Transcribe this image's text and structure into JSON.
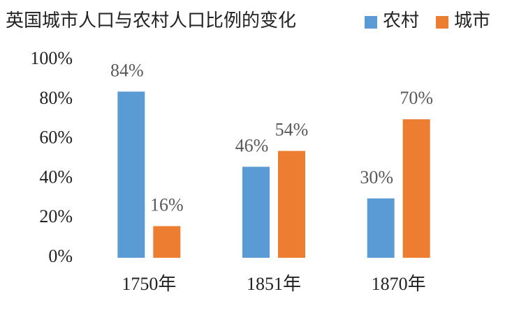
{
  "chart_data": {
    "type": "bar",
    "title": "英国城市人口与农村人口比例的变化",
    "categories": [
      "1750年",
      "1851年",
      "1870年"
    ],
    "series": [
      {
        "name": "农村",
        "color": "#5b9bd5",
        "values": [
          84,
          46,
          30
        ],
        "value_labels": [
          "84%",
          "46%",
          "30%"
        ]
      },
      {
        "name": "城市",
        "color": "#ed7d31",
        "values": [
          16,
          54,
          70
        ],
        "value_labels": [
          "16%",
          "54%",
          "70%"
        ]
      }
    ],
    "ylim": [
      0,
      100
    ],
    "yticks": [
      {
        "value": 0,
        "label": "0%"
      },
      {
        "value": 20,
        "label": "20%"
      },
      {
        "value": 40,
        "label": "40%"
      },
      {
        "value": 60,
        "label": "60%"
      },
      {
        "value": 80,
        "label": "80%"
      },
      {
        "value": 100,
        "label": "100%"
      }
    ],
    "grid": false,
    "legend": "top-right"
  }
}
